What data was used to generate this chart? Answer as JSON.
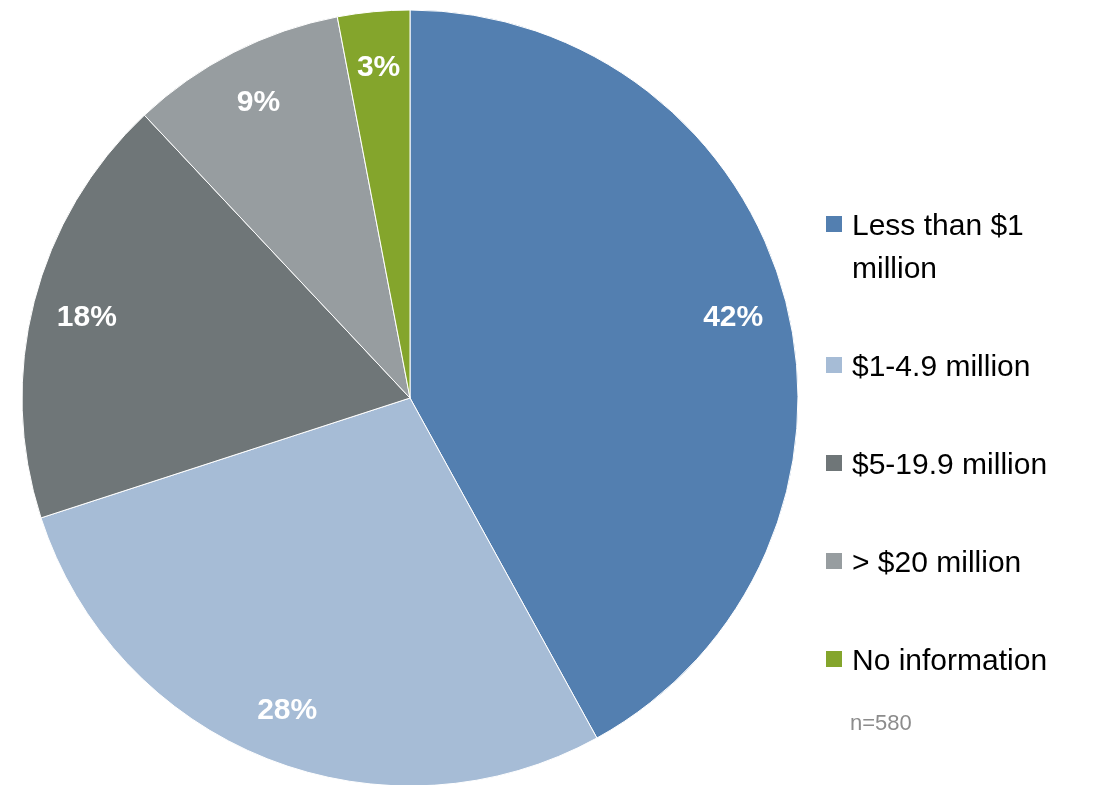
{
  "chart_data": {
    "type": "pie",
    "categories": [
      "Less than $1 million",
      "$1-4.9 million",
      "$5-19.9 million",
      "> $20 million",
      "No information"
    ],
    "values": [
      42,
      28,
      18,
      9,
      3
    ],
    "colors": [
      "#537fb0",
      "#a6bcd6",
      "#6f7678",
      "#979da0",
      "#84a52c"
    ],
    "value_labels": [
      "42%",
      "28%",
      "18%",
      "9%",
      "3%"
    ],
    "legend": "right",
    "annotations": [
      "n=580"
    ]
  }
}
